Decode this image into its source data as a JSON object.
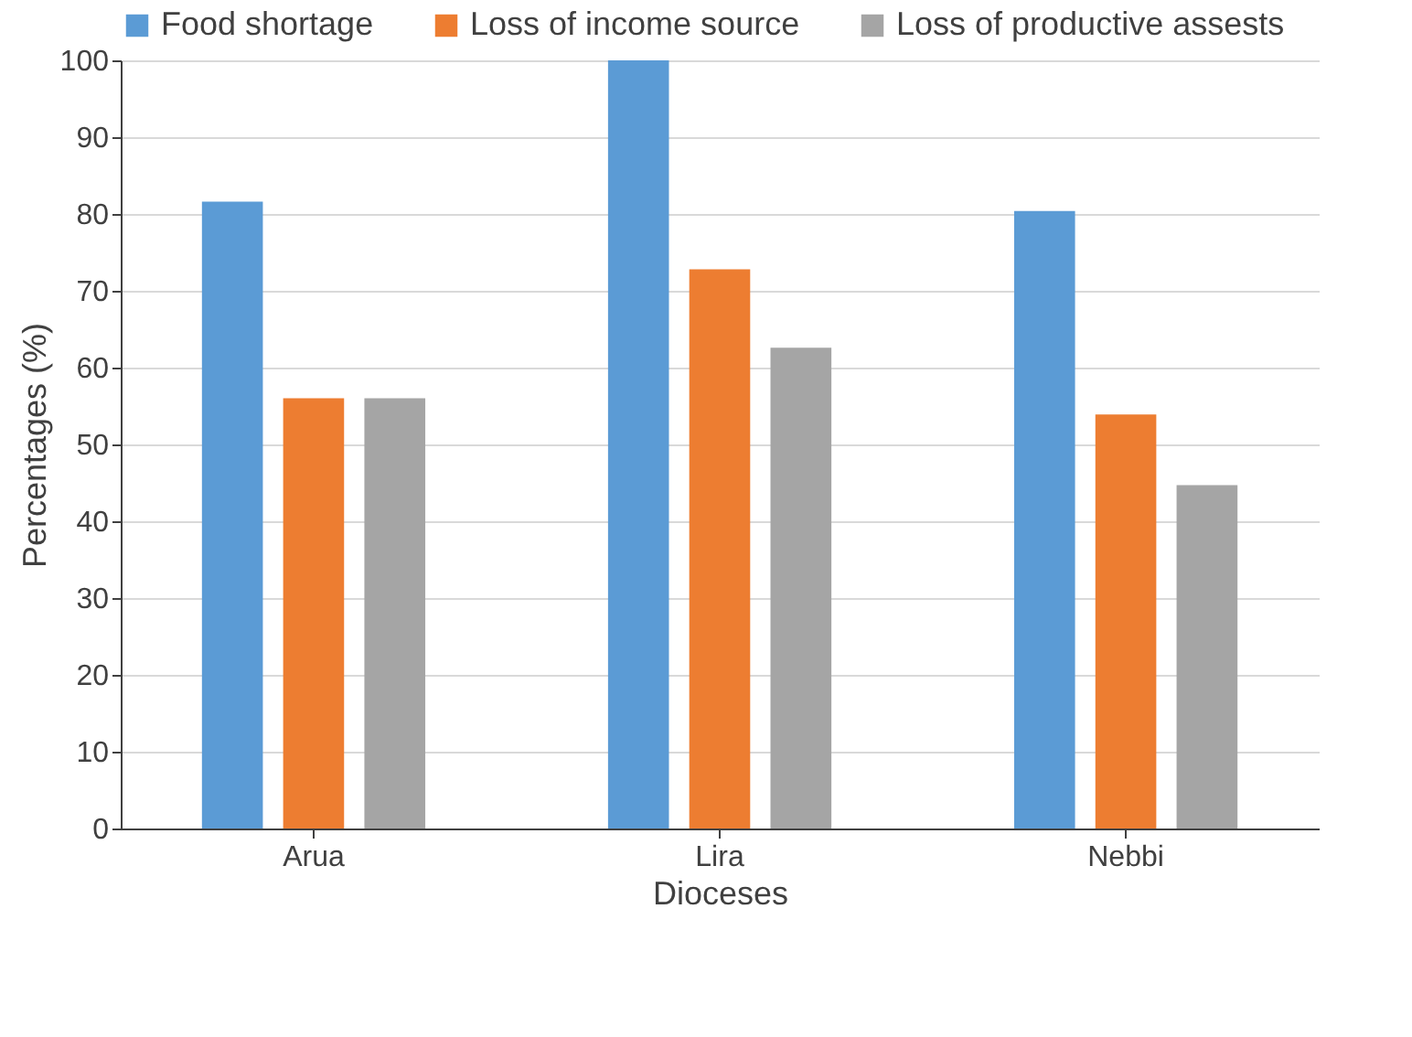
{
  "chart_data": {
    "type": "bar",
    "xlabel": "Dioceses",
    "ylabel": "Percentages (%)",
    "categories": [
      "Arua",
      "Lira",
      "Nebbi"
    ],
    "series": [
      {
        "name": "Food shortage",
        "color": "#5b9bd5",
        "values": [
          81.6,
          100,
          80.4
        ]
      },
      {
        "name": "Loss of income source",
        "color": "#ed7d31",
        "values": [
          56,
          72.8,
          53.9
        ]
      },
      {
        "name": "Loss of productive assests",
        "color": "#a5a5a5",
        "values": [
          56,
          62.6,
          44.7
        ]
      }
    ],
    "ylim": [
      0,
      100
    ],
    "yticks": [
      0,
      10,
      20,
      30,
      40,
      50,
      60,
      70,
      80,
      90,
      100
    ],
    "grid": "y",
    "legend": "top"
  }
}
